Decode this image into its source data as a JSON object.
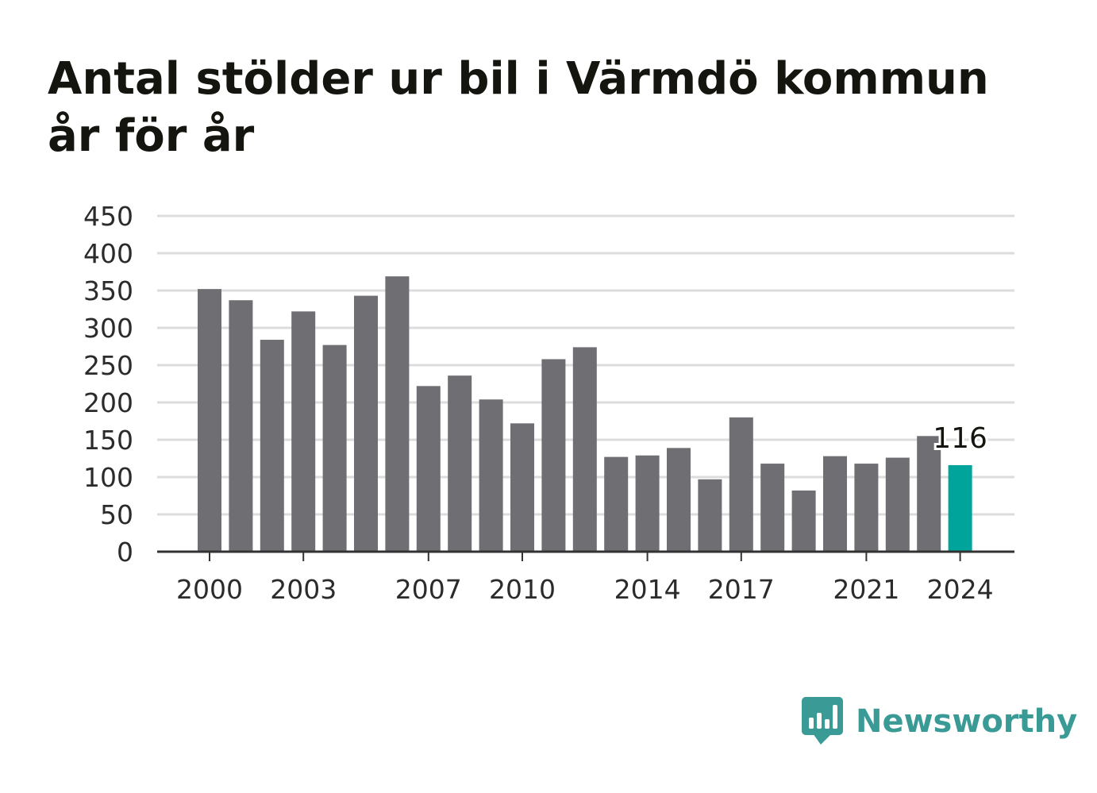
{
  "title_lines": [
    "Antal stölder ur bil i Värmdö kommun",
    "år för år"
  ],
  "brand": {
    "name": "Newsworthy",
    "icon": "newsworthy-logo-icon",
    "color": "#3a9a95"
  },
  "colors": {
    "bar": "#6f6e73",
    "highlight": "#00a49a",
    "grid": "#dcdcdc",
    "axis": "#333333"
  },
  "chart_data": {
    "type": "bar",
    "title": "Antal stölder ur bil i Värmdö kommun år för år",
    "xlabel": "",
    "ylabel": "",
    "ylim": [
      0,
      450
    ],
    "yticks": [
      0,
      50,
      100,
      150,
      200,
      250,
      300,
      350,
      400,
      450
    ],
    "xtick_labels": [
      "2000",
      "2003",
      "2007",
      "2010",
      "2014",
      "2017",
      "2021",
      "2024"
    ],
    "categories": [
      "2000",
      "2001",
      "2002",
      "2003",
      "2004",
      "2005",
      "2006",
      "2007",
      "2008",
      "2009",
      "2010",
      "2011",
      "2012",
      "2013",
      "2014",
      "2015",
      "2016",
      "2017",
      "2018",
      "2019",
      "2020",
      "2021",
      "2022",
      "2023",
      "2024"
    ],
    "values": [
      352,
      337,
      284,
      322,
      277,
      343,
      369,
      222,
      236,
      204,
      172,
      258,
      274,
      127,
      129,
      139,
      97,
      180,
      118,
      82,
      128,
      118,
      126,
      155,
      116
    ],
    "highlight_category": "2024",
    "annotations": [
      {
        "category": "2024",
        "text": "116"
      }
    ],
    "grid": true,
    "legend": "none"
  }
}
